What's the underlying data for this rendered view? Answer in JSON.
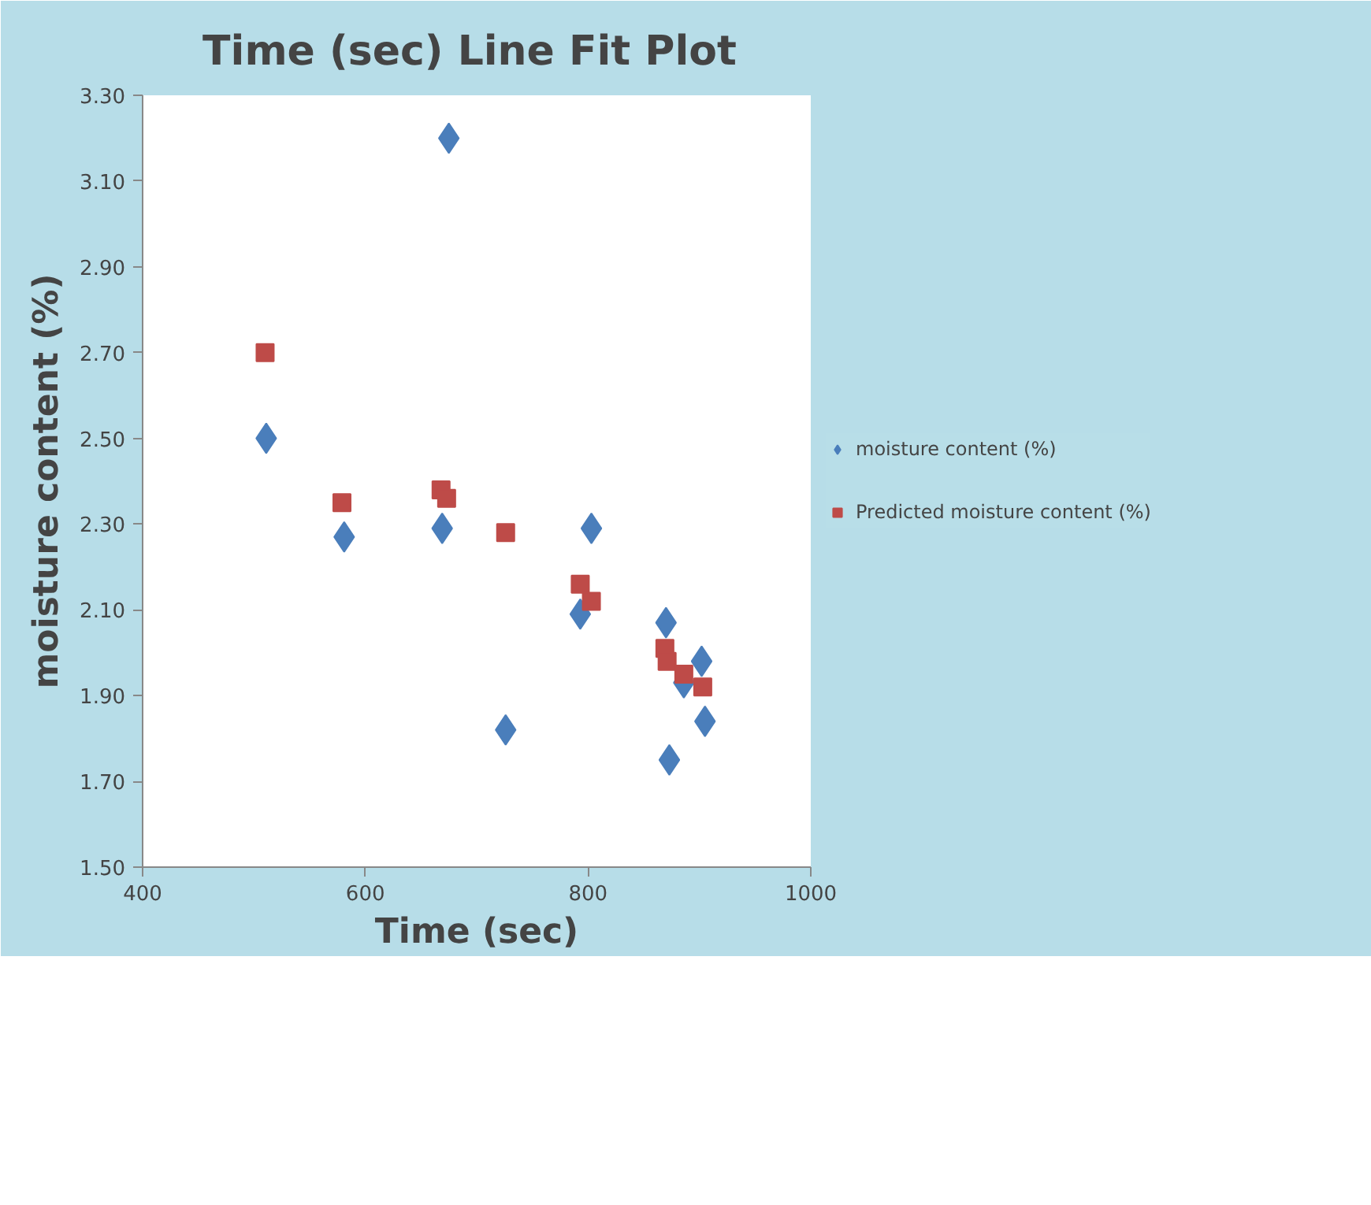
{
  "chart_data": {
    "type": "scatter",
    "title": "Time (sec) Line Fit  Plot",
    "xlabel": "Time (sec)",
    "ylabel": "moisture content (%)",
    "xlim": [
      400,
      1000
    ],
    "xticks": [
      400,
      600,
      800,
      1000
    ],
    "ylim": [
      1.5,
      3.3
    ],
    "yticks": [
      {
        "value": 1.5,
        "label": "1.50"
      },
      {
        "value": 1.7,
        "label": "1.70"
      },
      {
        "value": 1.9,
        "label": "1.90"
      },
      {
        "value": 2.1,
        "label": "2.10"
      },
      {
        "value": 2.3,
        "label": "2.30"
      },
      {
        "value": 2.5,
        "label": "2.50"
      },
      {
        "value": 2.7,
        "label": "2.70"
      },
      {
        "value": 2.9,
        "label": "2.90"
      },
      {
        "value": 3.1,
        "label": "3.10"
      },
      {
        "value": 3.3,
        "label": "3.30"
      }
    ],
    "grid": false,
    "legend": "right",
    "series": [
      {
        "name": "moisture content (%)",
        "color": "#4a7ebb",
        "marker": "diamond",
        "x": [
          511,
          581,
          669,
          675,
          726,
          803,
          793,
          870,
          873,
          902,
          886,
          905
        ],
        "values": [
          2.5,
          2.27,
          2.29,
          3.2,
          1.82,
          2.29,
          2.09,
          2.07,
          1.75,
          1.98,
          1.93,
          1.84
        ]
      },
      {
        "name": "Predicted moisture content (%)",
        "color": "#be4b48",
        "marker": "square",
        "x": [
          510,
          579,
          668,
          673,
          726,
          793,
          803,
          869,
          871,
          886,
          903
        ],
        "values": [
          2.7,
          2.35,
          2.38,
          2.36,
          2.28,
          2.16,
          2.12,
          2.01,
          1.98,
          1.95,
          1.92
        ]
      }
    ]
  }
}
